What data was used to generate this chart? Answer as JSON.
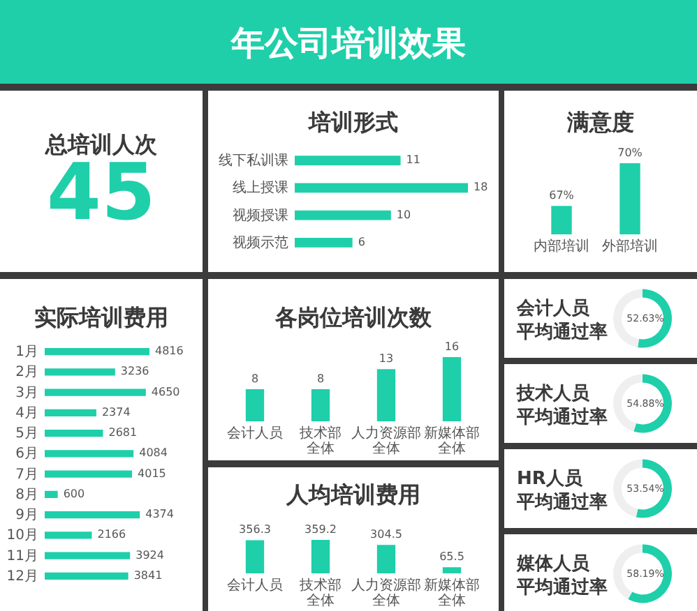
{
  "chart_data": [
    {
      "type": "other",
      "title": "年公司培训效果"
    },
    {
      "type": "other",
      "title": "总培训人次",
      "annotations": [
        "45"
      ]
    },
    {
      "type": "bar",
      "orientation": "horizontal",
      "title": "培训形式",
      "categories": [
        "线下私训课",
        "线上授课",
        "视频授课",
        "视频示范"
      ],
      "values": [
        11,
        18,
        10,
        6
      ],
      "color": "#1ecfaa",
      "data_labels": true,
      "tick_labels": "y"
    },
    {
      "type": "bar",
      "title": "满意度",
      "categories": [
        "内部培训",
        "外部培训"
      ],
      "values": [
        67,
        70
      ],
      "value_labels": [
        "67%",
        "70%"
      ],
      "color": "#1ecfaa",
      "ylim": [
        65,
        70
      ],
      "tick_labels": "x"
    },
    {
      "type": "bar",
      "orientation": "horizontal",
      "title": "实际培训费用",
      "categories": [
        "1月",
        "2月",
        "3月",
        "4月",
        "5月",
        "6月",
        "7月",
        "8月",
        "9月",
        "10月",
        "11月",
        "12月"
      ],
      "values": [
        4816,
        3236,
        4650,
        2374,
        2681,
        4084,
        4015,
        600,
        4374,
        2166,
        3924,
        3841
      ],
      "color": "#1ecfaa",
      "data_labels": true,
      "tick_labels": "y"
    },
    {
      "type": "bar",
      "title": "各岗位培训次数",
      "categories": [
        "会计人员",
        "技术部全体",
        "人力资源部全体",
        "新媒体部全体"
      ],
      "values": [
        8,
        8,
        13,
        16
      ],
      "color": "#1ecfaa",
      "data_labels": true,
      "tick_labels": "x"
    },
    {
      "type": "bar",
      "title": "人均培训费用",
      "categories": [
        "会计人员",
        "技术部全体",
        "人力资源部全体",
        "新媒体部全体"
      ],
      "values": [
        356.3,
        359.2,
        304.5,
        65.5
      ],
      "color": "#1ecfaa",
      "data_labels": true,
      "tick_labels": "x"
    },
    {
      "type": "donut",
      "title": "会计人员平均通过率",
      "categories": [
        null,
        null
      ],
      "values": [
        52.63,
        47.37
      ],
      "colors": [
        "#1ecfaa",
        "#efefef"
      ],
      "value_labels": [
        "52.63%",
        null
      ]
    },
    {
      "type": "donut",
      "title": "技术人员平均通过率",
      "categories": [
        null,
        null
      ],
      "values": [
        54.88,
        45.12
      ],
      "colors": [
        "#1ecfaa",
        "#efefef"
      ],
      "value_labels": [
        "54.88%",
        null
      ]
    },
    {
      "type": "donut",
      "title": "HR人员平均通过率",
      "categories": [
        null,
        null
      ],
      "values": [
        53.54,
        46.46
      ],
      "colors": [
        "#1ecfaa",
        "#efefef"
      ],
      "value_labels": [
        "53.54%",
        null
      ]
    },
    {
      "type": "donut",
      "title": "媒体人员平均通过率",
      "categories": [
        null,
        null
      ],
      "values": [
        58.19,
        41.81
      ],
      "colors": [
        "#1ecfaa",
        "#efefef"
      ],
      "value_labels": [
        "58.19%",
        null
      ]
    }
  ]
}
